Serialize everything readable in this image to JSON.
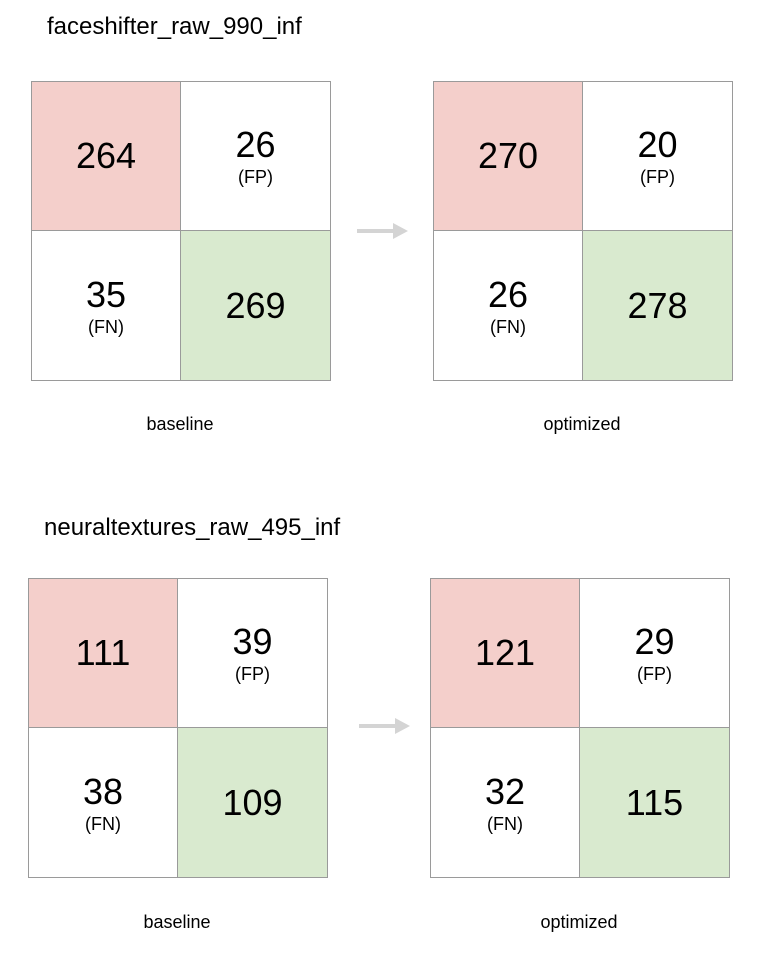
{
  "blocks": [
    {
      "title": "faceshifter_raw_990_inf",
      "baseline": {
        "tl": "264",
        "tr": "26",
        "tr_sub": "(FP)",
        "bl": "35",
        "bl_sub": "(FN)",
        "br": "269",
        "caption": "baseline"
      },
      "optimized": {
        "tl": "270",
        "tr": "20",
        "tr_sub": "(FP)",
        "bl": "26",
        "bl_sub": "(FN)",
        "br": "278",
        "caption": "optimized"
      }
    },
    {
      "title": "neuraltextures_raw_495_inf",
      "baseline": {
        "tl": "111",
        "tr": "39",
        "tr_sub": "(FP)",
        "bl": "38",
        "bl_sub": "(FN)",
        "br": "109",
        "caption": "baseline"
      },
      "optimized": {
        "tl": "121",
        "tr": "29",
        "tr_sub": "(FP)",
        "bl": "32",
        "bl_sub": "(FN)",
        "br": "115",
        "caption": "optimized"
      }
    }
  ],
  "colors": {
    "true_cell_red": "#f4cfcb",
    "true_cell_green": "#d9eacf",
    "arrow": "#d4d4d4",
    "grid_line": "#9a9a9a"
  },
  "icons": {
    "arrow": "right-arrow-icon"
  }
}
